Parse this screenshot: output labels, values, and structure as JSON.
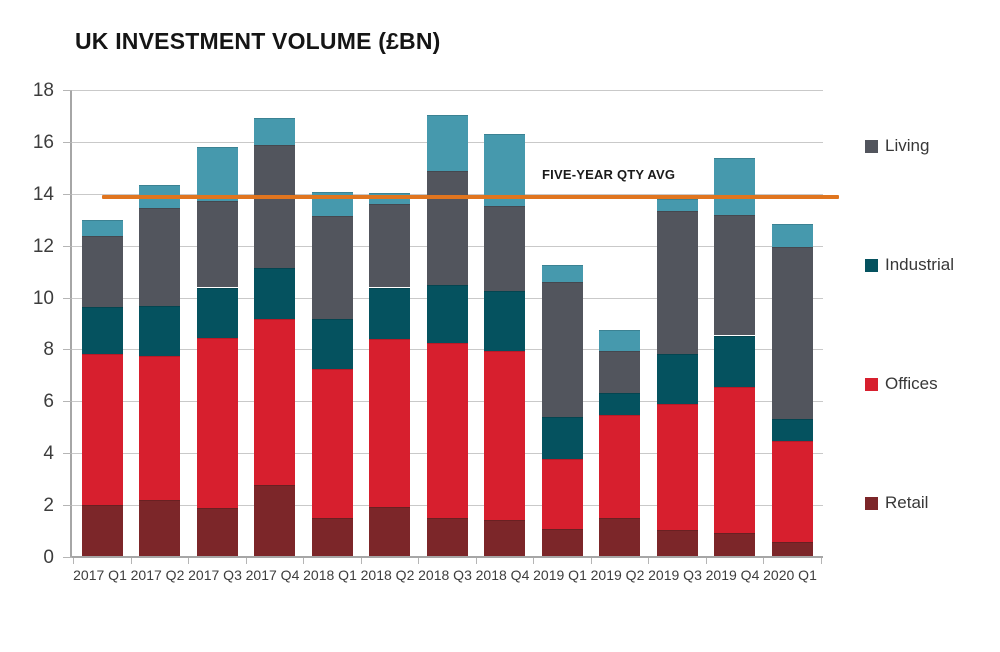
{
  "chart_data": {
    "type": "bar",
    "stacked": true,
    "title": "UK INVESTMENT VOLUME (£BN)",
    "categories": [
      "2017 Q1",
      "2017 Q2",
      "2017 Q3",
      "2017 Q4",
      "2018 Q1",
      "2018 Q2",
      "2018 Q3",
      "2018 Q4",
      "2019 Q1",
      "2019 Q2",
      "2019 Q3",
      "2019 Q4",
      "2020 Q1"
    ],
    "series": [
      {
        "name": "Retail",
        "color": "#7c2629",
        "in_legend": true,
        "values": [
          1.95,
          2.15,
          1.85,
          2.75,
          1.45,
          1.9,
          1.45,
          1.4,
          1.05,
          1.45,
          1.0,
          0.9,
          0.55
        ]
      },
      {
        "name": "Offices",
        "color": "#d71f2e",
        "in_legend": true,
        "values": [
          5.85,
          5.55,
          6.55,
          6.4,
          5.75,
          6.45,
          6.75,
          6.5,
          2.7,
          4.0,
          4.85,
          5.6,
          3.9
        ]
      },
      {
        "name": "Industrial",
        "color": "#05525f",
        "in_legend": true,
        "values": [
          1.8,
          1.95,
          1.95,
          1.95,
          1.95,
          2.0,
          2.25,
          2.3,
          1.6,
          0.85,
          1.95,
          2.0,
          0.85
        ]
      },
      {
        "name": "Living",
        "color": "#52555d",
        "in_legend": true,
        "values": [
          2.75,
          3.75,
          3.35,
          4.75,
          3.95,
          3.2,
          4.4,
          3.3,
          5.2,
          1.6,
          5.5,
          4.65,
          6.6
        ]
      },
      {
        "name": "",
        "color": "#4699ad",
        "in_legend": false,
        "values": [
          0.6,
          0.9,
          2.05,
          1.05,
          0.95,
          0.45,
          2.15,
          2.75,
          0.65,
          0.8,
          0.45,
          2.2,
          0.9
        ]
      }
    ],
    "totals": [
      12.95,
      14.3,
      15.75,
      16.9,
      14.05,
      14.0,
      17.0,
      16.25,
      11.2,
      8.7,
      13.75,
      15.35,
      12.8
    ],
    "avg_line": {
      "label": "FIVE-YEAR QTY AVG",
      "value": 13.9,
      "color": "#e0751f"
    },
    "ylim": [
      0,
      18
    ],
    "yticks": [
      0,
      2,
      4,
      6,
      8,
      10,
      12,
      14,
      16,
      18
    ],
    "grid": true,
    "legend_position": "right",
    "legend_order": [
      "Living",
      "Industrial",
      "Offices",
      "Retail"
    ]
  }
}
